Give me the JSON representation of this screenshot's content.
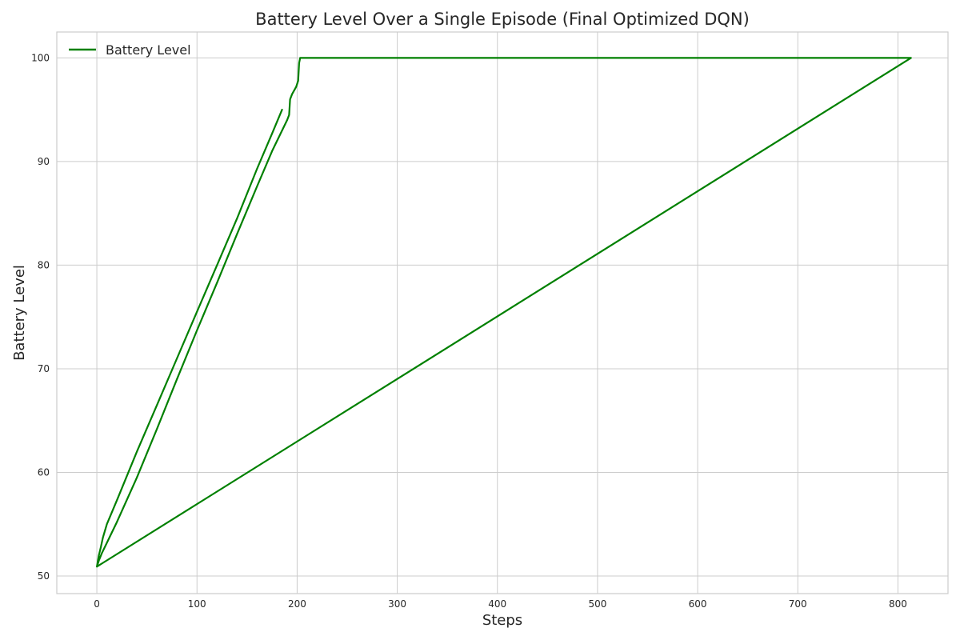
{
  "chart_data": {
    "type": "line",
    "title": "Battery Level Over a Single Episode (Final Optimized DQN)",
    "xlabel": "Steps",
    "ylabel": "Battery Level",
    "xlim": [
      -40,
      850
    ],
    "ylim": [
      48.3,
      102.5
    ],
    "xticks": [
      0,
      100,
      200,
      300,
      400,
      500,
      600,
      700,
      800
    ],
    "yticks": [
      50,
      60,
      70,
      80,
      90,
      100
    ],
    "grid": true,
    "legend_position": "top-left",
    "colors": {
      "series": "#008000",
      "grid": "#cccccc",
      "frame": "#cccccc",
      "text": "#262626"
    },
    "series": [
      {
        "name": "Battery Level",
        "x": [
          185,
          175,
          160,
          140,
          120,
          100,
          80,
          60,
          40,
          20,
          10,
          6,
          4,
          2,
          0,
          813,
          203,
          202,
          201,
          199,
          195,
          193,
          192,
          190,
          175,
          160,
          140,
          120,
          100,
          80,
          60,
          40,
          20,
          10,
          5,
          2,
          0
        ],
        "y": [
          95.0,
          92.7,
          89.3,
          84.5,
          80.0,
          75.5,
          71.0,
          66.5,
          62.0,
          57.3,
          55.0,
          53.7,
          52.8,
          52.0,
          50.9,
          100,
          100,
          99.5,
          97.8,
          97.2,
          96.5,
          96.0,
          94.5,
          94.0,
          91.0,
          87.6,
          83.0,
          78.3,
          73.7,
          69.0,
          64.2,
          59.5,
          55.2,
          53.2,
          52.2,
          51.5,
          50.9
        ]
      }
    ]
  }
}
